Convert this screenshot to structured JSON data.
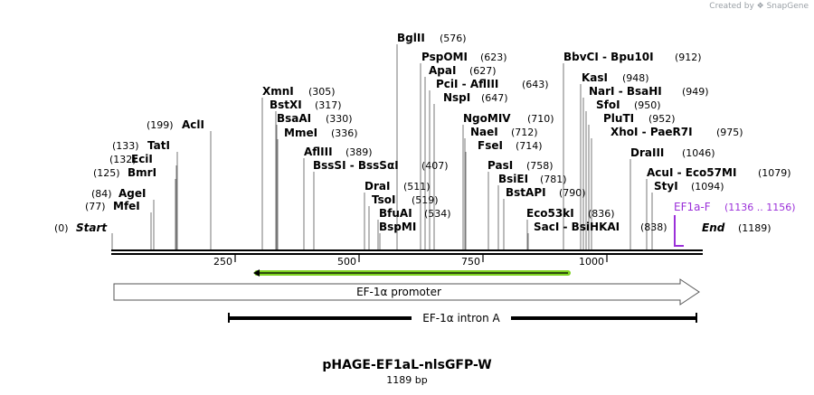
{
  "credit": "Created by ❖ SnapGene",
  "plasmid": {
    "name": "pHAGE-EF1aL-nlsGFP-W",
    "length_label": "1189 bp",
    "length": 1189
  },
  "ticks": [
    "250",
    "500",
    "750",
    "1000"
  ],
  "ends": {
    "start_label": "Start",
    "start_pos": "(0)",
    "end_label": "End",
    "end_pos": "(1189)"
  },
  "sites": [
    {
      "name": "MfeI",
      "pos": "(77)"
    },
    {
      "name": "AgeI",
      "pos": "(84)"
    },
    {
      "name": "BmrI",
      "pos": "(125)"
    },
    {
      "name": "EciI",
      "pos": "(132)"
    },
    {
      "name": "TatI",
      "pos": "(133)"
    },
    {
      "name": "AclI",
      "pos": "(199)"
    },
    {
      "name": "XmnI",
      "pos": "(305)"
    },
    {
      "name": "BstXI",
      "pos": "(317)"
    },
    {
      "name": "BsaAI",
      "pos": "(330)"
    },
    {
      "name": "MmeI",
      "pos": "(336)"
    },
    {
      "name": "AflIII",
      "pos": "(389)"
    },
    {
      "name": "BssSI - BssSαI",
      "pos": "(407)"
    },
    {
      "name": "DraI",
      "pos": "(511)"
    },
    {
      "name": "TsoI",
      "pos": "(519)"
    },
    {
      "name": "BfuAI",
      "pos": "(534)"
    },
    {
      "name": "BspMI",
      "pos": ""
    },
    {
      "name": "BglII",
      "pos": "(576)"
    },
    {
      "name": "PspOMI",
      "pos": "(623)"
    },
    {
      "name": "ApaI",
      "pos": "(627)"
    },
    {
      "name": "PciI - AflIII",
      "pos": "(643)"
    },
    {
      "name": "NspI",
      "pos": "(647)"
    },
    {
      "name": "NgoMIV",
      "pos": "(710)"
    },
    {
      "name": "NaeI",
      "pos": "(712)"
    },
    {
      "name": "FseI",
      "pos": "(714)"
    },
    {
      "name": "PasI",
      "pos": "(758)"
    },
    {
      "name": "BsiEI",
      "pos": "(781)"
    },
    {
      "name": "BstAPI",
      "pos": "(790)"
    },
    {
      "name": "Eco53kI",
      "pos": "(836)"
    },
    {
      "name": "SacI - BsiHKAI",
      "pos": "(838)"
    },
    {
      "name": "BbvCI - Bpu10I",
      "pos": "(912)"
    },
    {
      "name": "KasI",
      "pos": "(948)"
    },
    {
      "name": "NarI - BsaHI",
      "pos": "(949)"
    },
    {
      "name": "SfoI",
      "pos": "(950)"
    },
    {
      "name": "PluTI",
      "pos": "(952)"
    },
    {
      "name": "XhoI - PaeR7I",
      "pos": "(975)"
    },
    {
      "name": "DraIII",
      "pos": "(1046)"
    },
    {
      "name": "AcuI - Eco57MI",
      "pos": "(1079)"
    },
    {
      "name": "StyI",
      "pos": "(1094)"
    }
  ],
  "primer": {
    "name": "EF1a-F",
    "range": "(1136 .. 1156)",
    "color": "#9b30d9"
  },
  "features": [
    {
      "name": "EF-1α promoter",
      "type": "promoter"
    },
    {
      "name": "EF-1α intron A",
      "type": "intron"
    }
  ],
  "colors": {
    "orf_green": "#7ed321",
    "line": "#000000",
    "primer": "#9b30d9"
  }
}
